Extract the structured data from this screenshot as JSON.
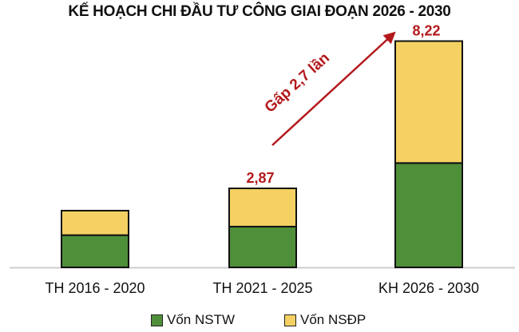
{
  "chart_data": {
    "type": "bar",
    "stacked": true,
    "title": "KẾ HOẠCH CHI ĐẦU TƯ CÔNG GIAI ĐOẠN 2026 - 2030",
    "categories": [
      "TH 2016 - 2020",
      "TH 2021 - 2025",
      "KH 2026 - 2030"
    ],
    "series": [
      {
        "name": "Vốn NSTW",
        "color": "#4f8f3a",
        "values": [
          1.17,
          1.48,
          3.79
        ]
      },
      {
        "name": "Vốn NSĐP",
        "color": "#f5d163",
        "values": [
          0.89,
          1.39,
          4.43
        ]
      }
    ],
    "data_labels": [
      "",
      "2,87",
      "8,22"
    ],
    "annotation": "Gấp 2,7 lần",
    "annotation_color": "#b3191c",
    "ylim": [
      0,
      8.3
    ],
    "grid": false,
    "legend": "bottom"
  }
}
